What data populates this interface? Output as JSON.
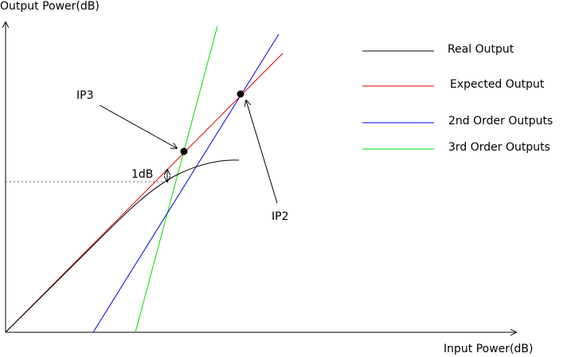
{
  "axes": {
    "y_label": "Output Power(dB)",
    "x_label": "Input Power(dB)"
  },
  "annotations": {
    "ip3": "IP3",
    "ip2": "IP2",
    "one_db": "1dB"
  },
  "legend": [
    {
      "label": "Real Output",
      "color": "#000000"
    },
    {
      "label": "Expected Output",
      "color": "#e00000"
    },
    {
      "label": "2nd Order Outputs",
      "color": "#0000e0"
    },
    {
      "label": "3rd Order Outputs",
      "color": "#00e000"
    }
  ]
}
